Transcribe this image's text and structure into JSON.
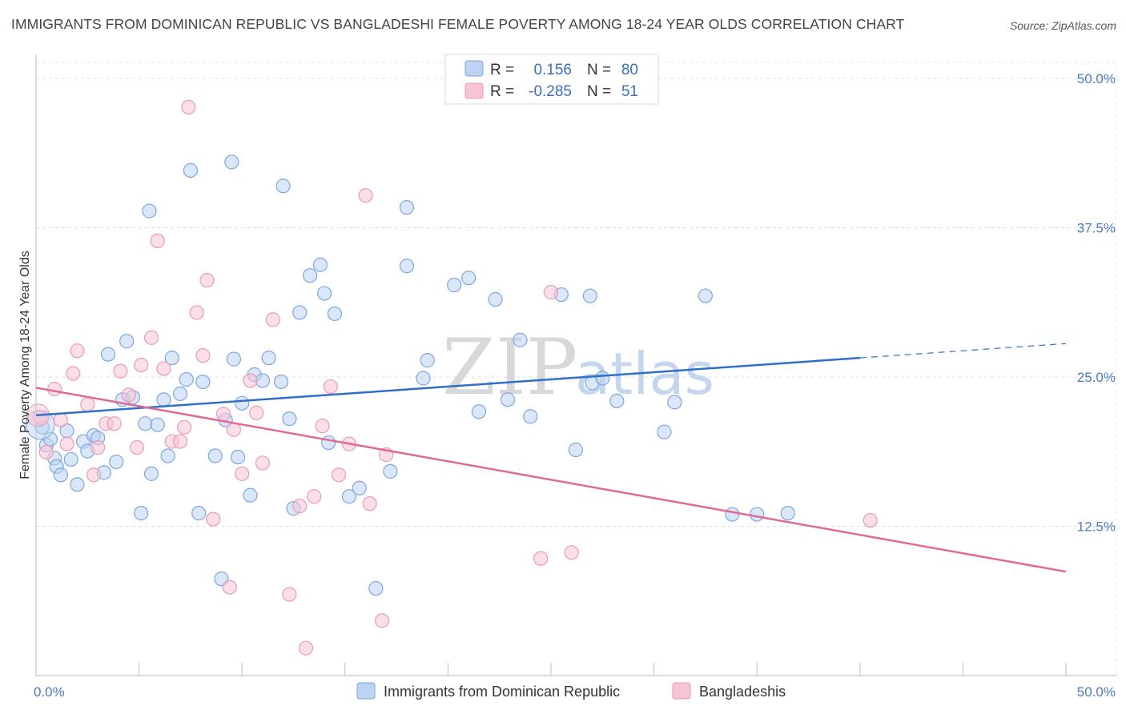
{
  "title": "IMMIGRANTS FROM DOMINICAN REPUBLIC VS BANGLADESHI FEMALE POVERTY AMONG 18-24 YEAR OLDS CORRELATION CHART",
  "source": "Source: ZipAtlas.com",
  "watermark": {
    "zip": "ZIP",
    "atlas": "atlas"
  },
  "colors": {
    "blue_fill": "#bcd3f2",
    "blue_stroke": "#7ea6de",
    "blue_line": "#2f6fcc",
    "pink_fill": "#f6c5d5",
    "pink_stroke": "#ea9ab4",
    "pink_line": "#e06a94"
  },
  "legend": {
    "r_label": "R =",
    "n_label": "N =",
    "blue": {
      "r": "0.156",
      "n": "80"
    },
    "pink": {
      "r": "-0.285",
      "n": "51"
    }
  },
  "chart_data": {
    "type": "scatter",
    "title": "IMMIGRANTS FROM DOMINICAN REPUBLIC VS BANGLADESHI FEMALE POVERTY AMONG 18-24 YEAR OLDS CORRELATION CHART",
    "xlabel": "",
    "ylabel": "Female Poverty Among 18-24 Year Olds",
    "xlim": [
      0,
      50
    ],
    "ylim": [
      0,
      50
    ],
    "x_tick_labels": [
      "0.0%",
      "50.0%"
    ],
    "y_ticks": [
      12.5,
      25.0,
      37.5,
      50.0
    ],
    "y_tick_labels": [
      "12.5%",
      "25.0%",
      "37.5%",
      "50.0%"
    ],
    "grid": true,
    "legend_position": "top-center",
    "series": [
      {
        "name": "Immigrants from Dominican Republic",
        "r": 0.156,
        "n": 80,
        "trend": {
          "x": [
            0,
            40
          ],
          "y": [
            21.8,
            26.6
          ],
          "dashed_extension_to_x": 50,
          "dashed_end_y": 27.8
        },
        "points": [
          [
            0.3,
            20.8
          ],
          [
            0.5,
            19.3
          ],
          [
            0.7,
            19.8
          ],
          [
            0.9,
            18.2
          ],
          [
            1.0,
            17.5
          ],
          [
            1.2,
            16.8
          ],
          [
            1.5,
            20.5
          ],
          [
            1.7,
            18.1
          ],
          [
            2.0,
            16.0
          ],
          [
            2.3,
            19.6
          ],
          [
            2.5,
            18.8
          ],
          [
            2.8,
            20.1
          ],
          [
            3.0,
            19.9
          ],
          [
            3.3,
            17.0
          ],
          [
            3.5,
            26.9
          ],
          [
            3.9,
            17.9
          ],
          [
            4.2,
            23.1
          ],
          [
            4.4,
            28.0
          ],
          [
            4.7,
            23.3
          ],
          [
            5.1,
            13.6
          ],
          [
            5.3,
            21.1
          ],
          [
            5.6,
            16.9
          ],
          [
            5.9,
            21.0
          ],
          [
            6.2,
            23.1
          ],
          [
            6.4,
            18.4
          ],
          [
            6.6,
            26.6
          ],
          [
            7.0,
            23.6
          ],
          [
            7.3,
            24.8
          ],
          [
            7.9,
            13.6
          ],
          [
            8.1,
            24.6
          ],
          [
            8.7,
            18.4
          ],
          [
            9.0,
            8.1
          ],
          [
            9.2,
            21.4
          ],
          [
            9.6,
            26.5
          ],
          [
            9.8,
            18.3
          ],
          [
            10.0,
            22.8
          ],
          [
            10.4,
            15.1
          ],
          [
            10.6,
            25.2
          ],
          [
            11.0,
            24.7
          ],
          [
            11.3,
            26.6
          ],
          [
            11.9,
            24.6
          ],
          [
            12.3,
            21.5
          ],
          [
            12.5,
            14.0
          ],
          [
            12.8,
            30.4
          ],
          [
            13.3,
            33.5
          ],
          [
            13.8,
            34.4
          ],
          [
            14.0,
            32.0
          ],
          [
            14.2,
            19.5
          ],
          [
            14.5,
            30.3
          ],
          [
            15.2,
            15.0
          ],
          [
            15.7,
            15.7
          ],
          [
            16.5,
            7.3
          ],
          [
            17.2,
            17.1
          ],
          [
            18.0,
            34.3
          ],
          [
            18.8,
            24.9
          ],
          [
            19.0,
            26.4
          ],
          [
            20.3,
            32.7
          ],
          [
            21.0,
            33.3
          ],
          [
            21.5,
            22.1
          ],
          [
            22.3,
            31.5
          ],
          [
            22.9,
            23.1
          ],
          [
            23.5,
            28.1
          ],
          [
            24.0,
            21.7
          ],
          [
            25.5,
            31.9
          ],
          [
            26.2,
            18.9
          ],
          [
            26.9,
            31.8
          ],
          [
            27.0,
            24.5
          ],
          [
            27.5,
            24.9
          ],
          [
            28.2,
            23.0
          ],
          [
            30.5,
            20.4
          ],
          [
            31.0,
            22.9
          ],
          [
            32.5,
            31.8
          ],
          [
            33.8,
            13.5
          ],
          [
            35.0,
            13.5
          ],
          [
            36.5,
            13.6
          ],
          [
            12.0,
            41.0
          ],
          [
            9.5,
            43.0
          ],
          [
            7.5,
            42.3
          ],
          [
            5.5,
            38.9
          ],
          [
            18.0,
            39.2
          ]
        ]
      },
      {
        "name": "Bangladeshis",
        "r": -0.285,
        "n": 51,
        "trend": {
          "x": [
            0,
            50
          ],
          "y": [
            24.1,
            8.7
          ]
        },
        "points": [
          [
            0.2,
            21.6
          ],
          [
            0.5,
            18.7
          ],
          [
            0.9,
            24.0
          ],
          [
            1.2,
            21.4
          ],
          [
            1.5,
            19.4
          ],
          [
            1.8,
            25.3
          ],
          [
            2.0,
            27.2
          ],
          [
            2.5,
            22.7
          ],
          [
            2.8,
            16.8
          ],
          [
            3.0,
            19.1
          ],
          [
            3.4,
            21.1
          ],
          [
            3.8,
            21.1
          ],
          [
            4.1,
            25.5
          ],
          [
            4.5,
            23.5
          ],
          [
            4.9,
            19.1
          ],
          [
            5.1,
            26.0
          ],
          [
            5.6,
            28.3
          ],
          [
            5.9,
            36.4
          ],
          [
            6.2,
            25.7
          ],
          [
            6.6,
            19.6
          ],
          [
            7.0,
            19.6
          ],
          [
            7.2,
            20.8
          ],
          [
            7.4,
            47.6
          ],
          [
            7.8,
            30.4
          ],
          [
            8.1,
            26.8
          ],
          [
            8.3,
            33.1
          ],
          [
            8.6,
            13.1
          ],
          [
            9.1,
            21.9
          ],
          [
            9.4,
            7.4
          ],
          [
            9.6,
            20.6
          ],
          [
            10.0,
            16.9
          ],
          [
            10.4,
            24.7
          ],
          [
            10.7,
            22.0
          ],
          [
            11.0,
            17.8
          ],
          [
            11.5,
            29.8
          ],
          [
            12.3,
            6.8
          ],
          [
            12.8,
            14.2
          ],
          [
            13.1,
            2.3
          ],
          [
            13.5,
            15.0
          ],
          [
            13.9,
            20.9
          ],
          [
            14.3,
            24.2
          ],
          [
            14.7,
            16.8
          ],
          [
            15.2,
            19.4
          ],
          [
            16.0,
            40.2
          ],
          [
            16.2,
            14.4
          ],
          [
            16.8,
            4.6
          ],
          [
            17.0,
            18.5
          ],
          [
            24.5,
            9.8
          ],
          [
            25.0,
            32.1
          ],
          [
            26.0,
            10.3
          ],
          [
            40.5,
            13.0
          ]
        ]
      }
    ]
  },
  "bottom_legend": {
    "blue_label": "Immigrants from Dominican Republic",
    "pink_label": "Bangladeshis"
  }
}
